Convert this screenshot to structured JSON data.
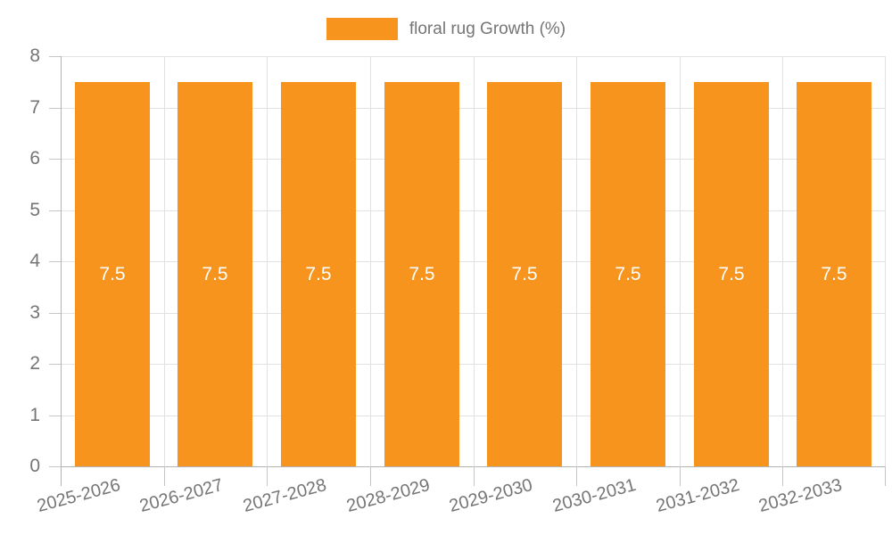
{
  "chart_data": {
    "type": "bar",
    "categories": [
      "2025-2026",
      "2026-2027",
      "2027-2028",
      "2028-2029",
      "2029-2030",
      "2030-2031",
      "2031-2032",
      "2032-2033"
    ],
    "series": [
      {
        "name": "floral rug Growth (%)",
        "values": [
          7.5,
          7.5,
          7.5,
          7.5,
          7.5,
          7.5,
          7.5,
          7.5
        ],
        "data_labels": [
          "7.5",
          "7.5",
          "7.5",
          "7.5",
          "7.5",
          "7.5",
          "7.5",
          "7.5"
        ]
      }
    ],
    "title": "",
    "xlabel": "",
    "ylabel": "",
    "ylim": [
      0,
      8
    ],
    "yticks": [
      "0",
      "1",
      "2",
      "3",
      "4",
      "5",
      "6",
      "7",
      "8"
    ],
    "grid": true,
    "legend_position": "top-center",
    "colors": {
      "bar": "#F7941E",
      "bar_label_text": "#FFFFFF",
      "axis_text": "#757575",
      "gridline": "#E2E2E2",
      "axis_line": "#B3B3B3",
      "tick": "#C6C6C6",
      "background": "#FFFFFF"
    }
  }
}
